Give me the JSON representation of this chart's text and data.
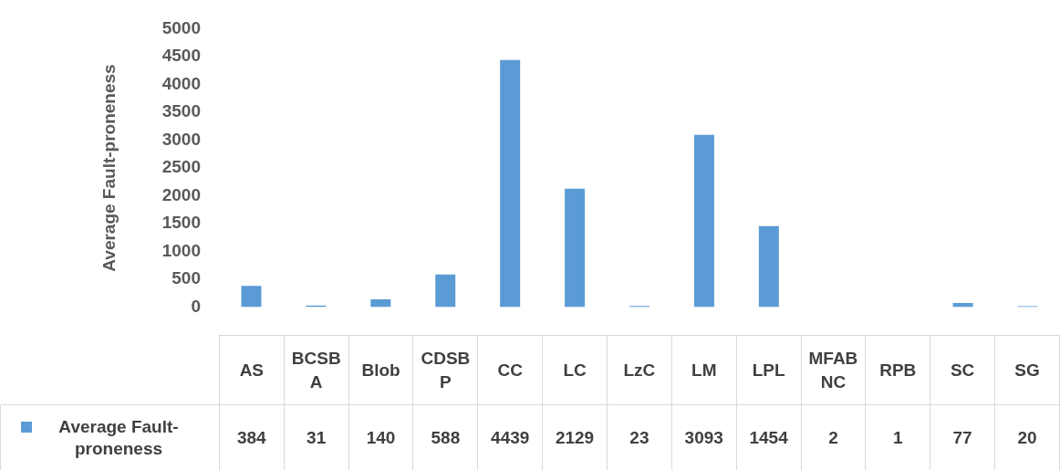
{
  "chart_data": {
    "type": "bar",
    "ylabel": "Average Fault-proneness",
    "categories": [
      "AS",
      "BCSBA",
      "Blob",
      "CDSBP",
      "CC",
      "LC",
      "LzC",
      "LM",
      "LPL",
      "MFABNC",
      "RPB",
      "SC",
      "SG"
    ],
    "series": [
      {
        "name": "Average Fault-proneness",
        "color": "#5b9bd5",
        "values": [
          384,
          31,
          140,
          588,
          4439,
          2129,
          23,
          3093,
          1454,
          2,
          1,
          77,
          20
        ]
      }
    ],
    "ylim": [
      0,
      5000
    ],
    "yticks": [
      0,
      500,
      1000,
      1500,
      2000,
      2500,
      3000,
      3500,
      4000,
      4500,
      5000
    ],
    "data_labels": true,
    "legend": "bottom"
  }
}
